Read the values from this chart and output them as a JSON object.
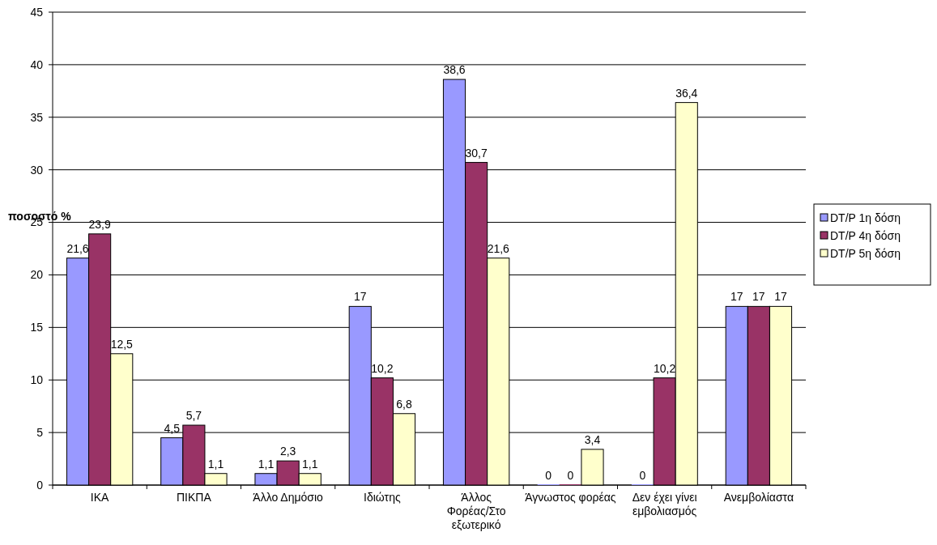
{
  "chart_data": {
    "type": "bar",
    "ylabel": "ποσοστό %",
    "categories": [
      "ΙΚΑ",
      "ΠΙΚΠΑ",
      "Άλλο Δημόσιο",
      "Ιδιώτης",
      "Άλλος Φορέας/Στο εξωτερικό",
      "Άγνωστος φορέας",
      "Δεν έχει γίνει εμβολιασμός",
      "Ανεμβολίαστα"
    ],
    "series": [
      {
        "name": "DT/P 1η δόση",
        "color": "#9999ff",
        "values": [
          21.6,
          4.5,
          1.1,
          17,
          38.6,
          0,
          0,
          17
        ],
        "value_labels": [
          "21,6",
          "4,5",
          "1,1",
          "17",
          "38,6",
          "0",
          "0",
          "17"
        ]
      },
      {
        "name": "DT/P 4η δόση",
        "color": "#993366",
        "values": [
          23.9,
          5.7,
          2.3,
          10.2,
          30.7,
          0,
          10.2,
          17
        ],
        "value_labels": [
          "23,9",
          "5,7",
          "2,3",
          "10,2",
          "30,7",
          "0",
          "10,2",
          "17"
        ]
      },
      {
        "name": "DT/P 5η δόση",
        "color": "#ffffcc",
        "values": [
          12.5,
          1.1,
          1.1,
          6.8,
          21.6,
          3.4,
          36.4,
          17
        ],
        "value_labels": [
          "12,5",
          "1,1",
          "1,1",
          "6,8",
          "21,6",
          "3,4",
          "36,4",
          "17"
        ]
      }
    ],
    "ylim": [
      0,
      45
    ],
    "yticks": [
      0,
      5,
      10,
      15,
      20,
      25,
      30,
      35,
      40,
      45
    ],
    "grid": "y",
    "legend": "right"
  }
}
